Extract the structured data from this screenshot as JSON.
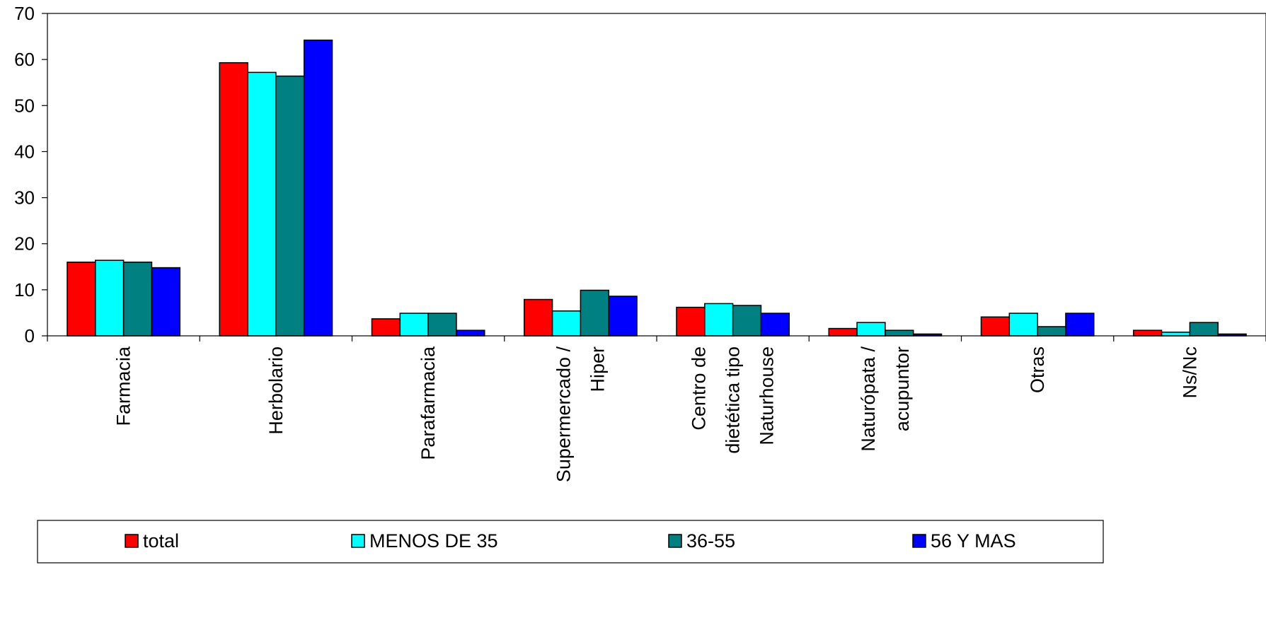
{
  "chart_data": {
    "type": "bar",
    "ylim": [
      0,
      70
    ],
    "yticks": [
      0,
      10,
      20,
      30,
      40,
      50,
      60,
      70
    ],
    "grid": false,
    "legend_position": "bottom",
    "categories": [
      [
        "Farmacia"
      ],
      [
        "Herbolario"
      ],
      [
        "Parafarmacia"
      ],
      [
        "Supermercado /",
        "Hiper"
      ],
      [
        "Centro de",
        "dietética tipo",
        "Naturhouse"
      ],
      [
        "Naturópata /",
        "acupuntor"
      ],
      [
        "Otras"
      ],
      [
        "Ns/Nc"
      ]
    ],
    "series": [
      {
        "name": "total",
        "color": "#ff0000",
        "values": [
          16.0,
          59.3,
          3.7,
          7.9,
          6.2,
          1.6,
          4.1,
          1.2
        ]
      },
      {
        "name": "MENOS DE 35",
        "color": "#00ffff",
        "values": [
          16.4,
          57.2,
          4.9,
          5.4,
          7.0,
          2.9,
          4.9,
          0.8
        ]
      },
      {
        "name": "36-55",
        "color": "#008080",
        "values": [
          16.0,
          56.4,
          4.9,
          9.9,
          6.6,
          1.2,
          2.0,
          2.9
        ]
      },
      {
        "name": "56 Y MAS",
        "color": "#0000ff",
        "values": [
          14.8,
          64.2,
          1.2,
          8.6,
          4.9,
          0.4,
          4.9,
          0.4
        ]
      }
    ]
  }
}
